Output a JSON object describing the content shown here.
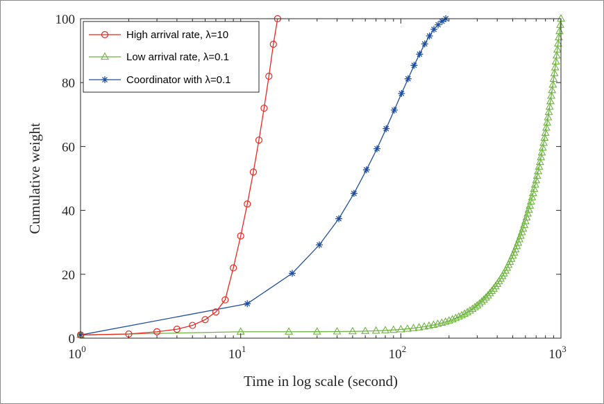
{
  "chart_data": {
    "type": "line",
    "xlabel": "Time in log scale (second)",
    "ylabel": "Cumulative weight",
    "x_scale": "log",
    "xlim": [
      1,
      1000
    ],
    "ylim": [
      0,
      100
    ],
    "x_ticks": [
      1,
      10,
      100,
      1000
    ],
    "x_tick_labels": [
      {
        "base": "10",
        "exp": "0"
      },
      {
        "base": "10",
        "exp": "1"
      },
      {
        "base": "10",
        "exp": "2"
      },
      {
        "base": "10",
        "exp": "3"
      }
    ],
    "y_ticks": [
      0,
      20,
      40,
      60,
      80,
      100
    ],
    "grid": false,
    "legend_position": "top-left",
    "series": [
      {
        "name": "High arrival rate, λ=10",
        "color": "#e8281f",
        "marker": "circle",
        "x": [
          1,
          2,
          3,
          4,
          5,
          6,
          7,
          8,
          9,
          10,
          11,
          12,
          13,
          14,
          15,
          16,
          17
        ],
        "y": [
          1,
          1.3,
          2,
          2.8,
          4,
          5.8,
          8.2,
          12,
          22,
          32,
          42,
          52,
          62,
          72,
          82,
          92,
          100
        ]
      },
      {
        "name": "Low arrival rate, λ=0.1",
        "color": "#6db33f",
        "marker": "triangle",
        "generated": {
          "start": 10,
          "end": 1000,
          "step": 10,
          "exponent": 2.0,
          "y0": 1,
          "y1": 100
        },
        "x": [
          1
        ],
        "y": [
          1
        ]
      },
      {
        "name": "Coordinator with  λ=0.1",
        "color": "#1f4e9e",
        "marker": "star",
        "x": [
          1,
          11,
          21,
          31,
          41,
          51,
          61,
          71,
          81,
          91,
          101,
          111,
          121,
          131,
          141,
          151,
          161,
          171,
          181,
          191
        ],
        "y": [
          1,
          10.8,
          20.3,
          29.2,
          37.4,
          45.3,
          52.7,
          59.3,
          65.6,
          71.4,
          76.6,
          81.2,
          85.4,
          88.9,
          92.1,
          94.6,
          96.7,
          98.1,
          99.2,
          100
        ]
      }
    ]
  }
}
